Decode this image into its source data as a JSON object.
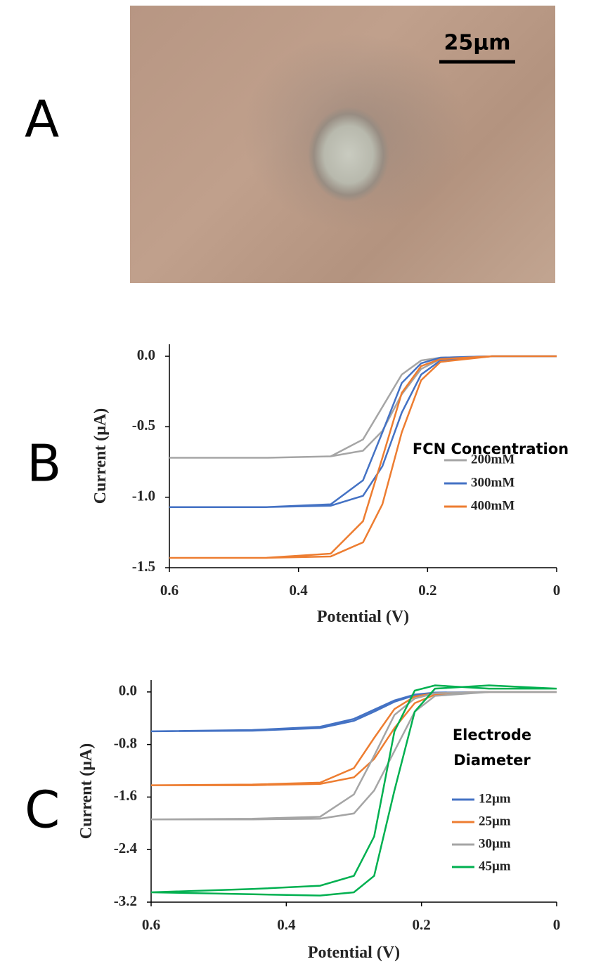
{
  "panel_labels": [
    "A",
    "B",
    "C"
  ],
  "image": {
    "scale_bar": "25μm"
  },
  "chart_data": [
    {
      "type": "line",
      "x": [
        0.6,
        0.45,
        0.35,
        0.3,
        0.27,
        0.24,
        0.21,
        0.18,
        0.1,
        0,
        0.1,
        0.18,
        0.21,
        0.24,
        0.27,
        0.3,
        0.35,
        0.45,
        0.6
      ],
      "series": [
        {
          "name": "200mM",
          "color": "#a5a5a5",
          "values": [
            -0.72,
            -0.72,
            -0.71,
            -0.67,
            -0.53,
            -0.27,
            -0.09,
            -0.02,
            0,
            0,
            0,
            -0.01,
            -0.03,
            -0.13,
            -0.36,
            -0.59,
            -0.71,
            -0.72,
            -0.72
          ]
        },
        {
          "name": "300mM",
          "color": "#4472c4",
          "values": [
            -1.07,
            -1.07,
            -1.06,
            -0.99,
            -0.78,
            -0.4,
            -0.13,
            -0.03,
            0,
            0,
            0,
            -0.01,
            -0.05,
            -0.19,
            -0.54,
            -0.88,
            -1.05,
            -1.07,
            -1.07
          ]
        },
        {
          "name": "400mM",
          "color": "#ed7d31",
          "values": [
            -1.43,
            -1.43,
            -1.42,
            -1.32,
            -1.05,
            -0.54,
            -0.17,
            -0.04,
            0,
            0,
            0,
            -0.02,
            -0.07,
            -0.26,
            -0.72,
            -1.17,
            -1.4,
            -1.43,
            -1.43
          ]
        }
      ],
      "legend_title": [
        "FCN Concentration"
      ],
      "x_label": "Potential (V)",
      "y_label": "Current (μA)",
      "xlim": [
        0.6,
        0
      ],
      "xticks": [
        0.6,
        0.4,
        0.2,
        0
      ],
      "ylim": [
        -1.5,
        0.085
      ],
      "yticks": [
        {
          "value": 0,
          "label": "0.0"
        },
        -0.5,
        {
          "value": -1,
          "label": "-1.0"
        },
        -1.5
      ]
    },
    {
      "type": "line",
      "x": [
        0.6,
        0.45,
        0.35,
        0.3,
        0.27,
        0.24,
        0.21,
        0.18,
        0.1,
        0,
        0.1,
        0.18,
        0.21,
        0.24,
        0.27,
        0.3,
        0.35,
        0.45,
        0.6
      ],
      "series": [
        {
          "name": "12μm",
          "color": "#4472c4",
          "values": [
            -0.6,
            -0.59,
            -0.55,
            -0.44,
            -0.3,
            -0.15,
            -0.05,
            -0.01,
            0,
            0,
            0,
            -0.01,
            -0.04,
            -0.13,
            -0.27,
            -0.41,
            -0.53,
            -0.58,
            -0.6
          ]
        },
        {
          "name": "25μm",
          "color": "#ed7d31",
          "values": [
            -1.42,
            -1.42,
            -1.4,
            -1.3,
            -1.02,
            -0.55,
            -0.17,
            -0.04,
            0,
            0,
            0,
            -0.02,
            -0.07,
            -0.26,
            -0.7,
            -1.16,
            -1.38,
            -1.41,
            -1.42
          ]
        },
        {
          "name": "30μm",
          "color": "#a5a5a5",
          "values": [
            -1.94,
            -1.94,
            -1.93,
            -1.85,
            -1.5,
            -0.9,
            -0.3,
            -0.06,
            0,
            0,
            0,
            -0.02,
            -0.1,
            -0.35,
            -0.97,
            -1.56,
            -1.9,
            -1.93,
            -1.94
          ]
        },
        {
          "name": "45μm",
          "color": "#00b050",
          "values": [
            -3.05,
            -3.08,
            -3.1,
            -3.05,
            -2.8,
            -1.5,
            -0.3,
            0.05,
            0.1,
            0.05,
            0.05,
            0.1,
            0.02,
            -0.6,
            -2.2,
            -2.8,
            -2.95,
            -3,
            -3.05
          ]
        }
      ],
      "legend_title": [
        "Electrode",
        "Diameter"
      ],
      "x_label": "Potential (V)",
      "y_label": "Current (μA)",
      "xlim": [
        0.6,
        0
      ],
      "xticks": [
        0.6,
        0.4,
        0.2,
        0
      ],
      "ylim": [
        -3.2,
        0.18
      ],
      "yticks": [
        {
          "value": 0,
          "label": "0.0"
        },
        -0.8,
        -1.6,
        -2.4,
        -3.2
      ]
    }
  ]
}
